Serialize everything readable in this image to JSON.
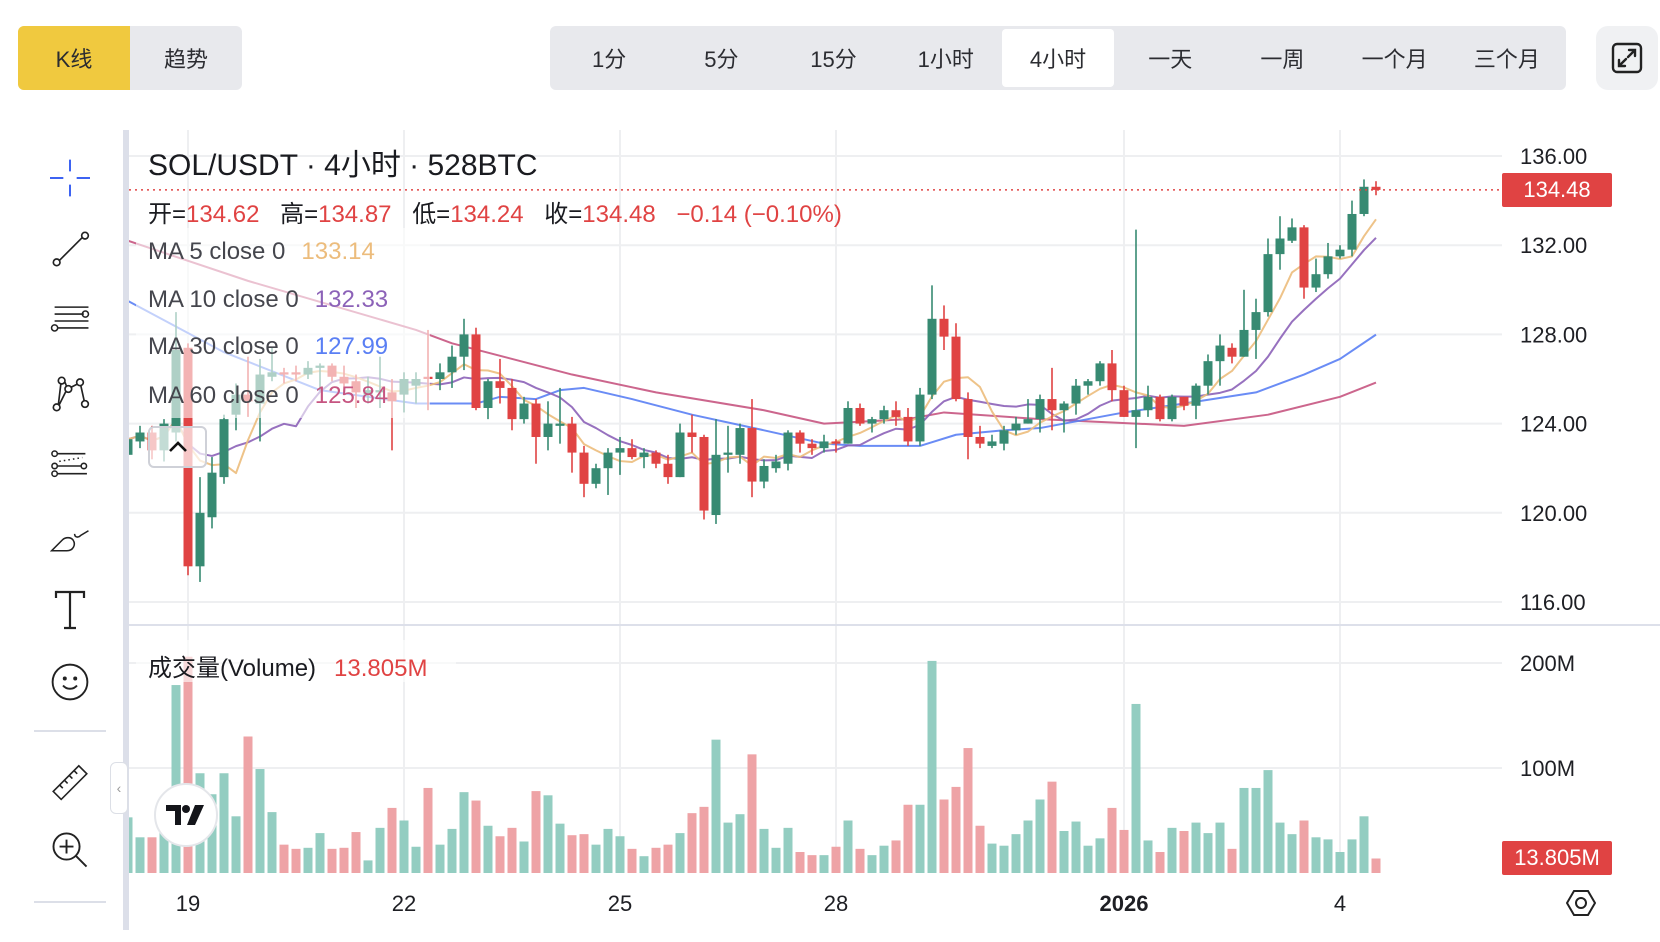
{
  "toolbar": {
    "chart_types": [
      {
        "label": "K线",
        "active": true
      },
      {
        "label": "趋势",
        "active": false
      }
    ],
    "timeframes": [
      {
        "label": "1分",
        "active": false
      },
      {
        "label": "5分",
        "active": false
      },
      {
        "label": "15分",
        "active": false
      },
      {
        "label": "1小时",
        "active": false
      },
      {
        "label": "4小时",
        "active": true
      },
      {
        "label": "一天",
        "active": false
      },
      {
        "label": "一周",
        "active": false
      },
      {
        "label": "一个月",
        "active": false
      },
      {
        "label": "三个月",
        "active": false
      }
    ],
    "fullscreen_icon": "expand-icon"
  },
  "drawing_tools": [
    "crosshair-icon",
    "trend-line-icon",
    "horizontal-lines-icon",
    "pattern-icon",
    "fib-channel-icon",
    "brush-icon",
    "text-icon",
    "emoji-icon",
    "ruler-icon",
    "zoom-in-icon"
  ],
  "legend": {
    "title": "SOL/USDT · 4小时 · 528BTC",
    "open_label": "开=",
    "open": "134.62",
    "high_label": "高=",
    "high": "134.87",
    "low_label": "低=",
    "low": "134.24",
    "close_label": "收=",
    "close": "134.48",
    "change": "−0.14 (−0.10%)",
    "ma": [
      {
        "label": "MA 5 close 0",
        "value": "133.14",
        "color": "#ecbc7c"
      },
      {
        "label": "MA 10 close 0",
        "value": "132.33",
        "color": "#8c62b8"
      },
      {
        "label": "MA 30 close 0",
        "value": "127.99",
        "color": "#5a7ff4"
      },
      {
        "label": "MA 60 close 0",
        "value": "125.84",
        "color": "#c65581"
      }
    ],
    "volume_label": "成交量(Volume)",
    "volume_value": "13.805M"
  },
  "price_tag": "134.48",
  "volume_tag": "13.805M",
  "colors": {
    "up": "#378a72",
    "down": "#e04343",
    "vol_up": "#93cdc1",
    "vol_down": "#eea3a6"
  },
  "chart_data": {
    "type": "candlestick",
    "symbol": "SOL/USDT",
    "interval": "4h",
    "y_ticks": [
      "136.00",
      "132.00",
      "128.00",
      "124.00",
      "120.00",
      "116.00"
    ],
    "ylim": [
      116,
      136
    ],
    "volume_ticks": [
      "200M",
      "100M"
    ],
    "volume_unit": "M",
    "x_ticks": [
      {
        "label": "19",
        "index": 5,
        "bold": false
      },
      {
        "label": "22",
        "index": 23,
        "bold": false
      },
      {
        "label": "25",
        "index": 41,
        "bold": false
      },
      {
        "label": "28",
        "index": 59,
        "bold": false
      },
      {
        "label": "2026",
        "index": 83,
        "bold": true
      },
      {
        "label": "4",
        "index": 101,
        "bold": false
      }
    ],
    "last_price": 134.48,
    "ohlc": [
      [
        122.6,
        123.8,
        122.2,
        123.3
      ],
      [
        123.2,
        123.9,
        122.9,
        123.6
      ],
      [
        123.6,
        123.9,
        122.4,
        122.8
      ],
      [
        122.8,
        124.2,
        122.3,
        124.0
      ],
      [
        123.6,
        129.0,
        123.2,
        127.3
      ],
      [
        127.4,
        127.6,
        117.2,
        117.6
      ],
      [
        117.6,
        121.6,
        116.9,
        120.0
      ],
      [
        119.8,
        122.5,
        119.3,
        121.8
      ],
      [
        121.6,
        124.4,
        121.3,
        124.2
      ],
      [
        124.4,
        125.8,
        123.7,
        125.3
      ],
      [
        125.3,
        127.0,
        124.3,
        125.0
      ],
      [
        124.9,
        126.9,
        123.2,
        126.2
      ],
      [
        126.1,
        127.4,
        125.9,
        126.3
      ],
      [
        126.3,
        126.5,
        125.8,
        126.2
      ],
      [
        126.3,
        126.6,
        125.9,
        126.2
      ],
      [
        126.2,
        126.8,
        126.0,
        126.5
      ],
      [
        126.5,
        126.7,
        125.5,
        126.6
      ],
      [
        126.6,
        126.7,
        125.9,
        126.1
      ],
      [
        126.1,
        126.6,
        125.4,
        125.8
      ],
      [
        125.9,
        126.2,
        124.7,
        125.4
      ],
      [
        125.3,
        126.1,
        124.9,
        125.5
      ],
      [
        125.4,
        127.0,
        124.7,
        125.5
      ],
      [
        125.4,
        126.0,
        122.8,
        125.0
      ],
      [
        125.3,
        126.3,
        124.5,
        126.0
      ],
      [
        125.7,
        126.3,
        124.9,
        126.0
      ],
      [
        126.1,
        128.2,
        124.6,
        126.0
      ],
      [
        126.0,
        126.7,
        125.5,
        126.3
      ],
      [
        126.3,
        127.5,
        125.6,
        127.0
      ],
      [
        127.0,
        128.7,
        126.4,
        128.0
      ],
      [
        128.0,
        128.3,
        124.6,
        124.7
      ],
      [
        124.7,
        126.0,
        124.2,
        125.9
      ],
      [
        125.9,
        126.9,
        124.9,
        125.6
      ],
      [
        125.6,
        126.0,
        123.7,
        124.2
      ],
      [
        124.2,
        125.2,
        124.0,
        124.9
      ],
      [
        124.9,
        125.1,
        122.2,
        123.4
      ],
      [
        123.4,
        125.0,
        122.8,
        124.0
      ],
      [
        123.9,
        125.6,
        123.1,
        124.0
      ],
      [
        124.0,
        124.3,
        121.8,
        122.7
      ],
      [
        122.7,
        123.0,
        120.7,
        121.3
      ],
      [
        121.3,
        122.2,
        121.1,
        122.0
      ],
      [
        122.0,
        122.9,
        120.8,
        122.7
      ],
      [
        122.7,
        123.4,
        121.7,
        122.9
      ],
      [
        122.9,
        123.3,
        122.4,
        122.5
      ],
      [
        122.5,
        122.9,
        122.0,
        122.7
      ],
      [
        122.7,
        122.8,
        122.0,
        122.2
      ],
      [
        122.2,
        122.6,
        121.3,
        121.6
      ],
      [
        121.6,
        124.0,
        121.6,
        123.6
      ],
      [
        123.6,
        124.4,
        122.7,
        123.4
      ],
      [
        123.4,
        123.5,
        119.7,
        120.1
      ],
      [
        119.9,
        124.2,
        119.5,
        122.6
      ],
      [
        122.6,
        123.9,
        121.8,
        122.7
      ],
      [
        122.6,
        124.0,
        122.2,
        123.8
      ],
      [
        123.8,
        125.1,
        120.7,
        121.4
      ],
      [
        121.4,
        122.4,
        121.1,
        122.1
      ],
      [
        122.0,
        122.6,
        121.8,
        122.3
      ],
      [
        122.2,
        123.7,
        121.9,
        123.6
      ],
      [
        123.6,
        123.7,
        122.7,
        123.1
      ],
      [
        123.1,
        123.3,
        122.6,
        122.9
      ],
      [
        122.9,
        123.5,
        122.7,
        123.2
      ],
      [
        123.2,
        123.3,
        122.7,
        123.1
      ],
      [
        123.1,
        125.0,
        123.1,
        124.7
      ],
      [
        124.7,
        124.9,
        123.9,
        124.0
      ],
      [
        124.0,
        124.3,
        123.6,
        124.2
      ],
      [
        124.2,
        124.8,
        124.0,
        124.6
      ],
      [
        124.6,
        125.0,
        123.9,
        124.3
      ],
      [
        124.3,
        124.7,
        123.0,
        123.2
      ],
      [
        123.2,
        125.6,
        123.0,
        125.3
      ],
      [
        125.3,
        130.2,
        125.1,
        128.7
      ],
      [
        128.7,
        129.3,
        127.3,
        127.9
      ],
      [
        127.9,
        128.5,
        125.0,
        125.1
      ],
      [
        125.1,
        125.4,
        122.4,
        123.4
      ],
      [
        123.4,
        123.9,
        122.9,
        123.1
      ],
      [
        123.0,
        123.5,
        122.9,
        123.2
      ],
      [
        123.1,
        123.9,
        122.8,
        123.7
      ],
      [
        123.7,
        124.3,
        123.5,
        124.0
      ],
      [
        124.0,
        125.1,
        124.0,
        124.2
      ],
      [
        124.2,
        125.3,
        123.6,
        125.1
      ],
      [
        125.1,
        126.5,
        123.7,
        124.6
      ],
      [
        124.6,
        125.0,
        123.6,
        124.9
      ],
      [
        124.9,
        126.0,
        124.4,
        125.7
      ],
      [
        125.7,
        126.0,
        125.3,
        125.9
      ],
      [
        125.9,
        126.8,
        125.7,
        126.7
      ],
      [
        126.7,
        127.3,
        125.0,
        125.5
      ],
      [
        125.5,
        125.7,
        124.3,
        124.3
      ],
      [
        124.3,
        132.7,
        122.9,
        124.6
      ],
      [
        124.6,
        125.7,
        124.3,
        125.2
      ],
      [
        125.2,
        125.3,
        124.1,
        124.2
      ],
      [
        124.2,
        125.3,
        124.1,
        125.2
      ],
      [
        125.2,
        125.2,
        124.6,
        124.8
      ],
      [
        124.8,
        125.8,
        124.2,
        125.7
      ],
      [
        125.7,
        127.1,
        125.3,
        126.8
      ],
      [
        126.8,
        128.0,
        125.7,
        127.5
      ],
      [
        127.4,
        127.6,
        126.7,
        127.0
      ],
      [
        127.0,
        130.0,
        127.0,
        128.2
      ],
      [
        128.2,
        129.6,
        126.9,
        129.0
      ],
      [
        129.0,
        132.3,
        128.8,
        131.6
      ],
      [
        131.6,
        133.3,
        130.9,
        132.3
      ],
      [
        132.2,
        133.2,
        132.1,
        132.8
      ],
      [
        132.8,
        132.9,
        129.6,
        130.1
      ],
      [
        130.1,
        131.4,
        129.9,
        130.7
      ],
      [
        130.7,
        132.1,
        130.5,
        131.5
      ],
      [
        131.5,
        132.0,
        131.4,
        131.8
      ],
      [
        131.8,
        134.0,
        131.5,
        133.4
      ],
      [
        133.4,
        134.95,
        133.3,
        134.62
      ],
      [
        134.62,
        134.87,
        134.24,
        134.48
      ]
    ],
    "volume": [
      53,
      34,
      34,
      40,
      179,
      206,
      95,
      75,
      95,
      54,
      130,
      99,
      58,
      27,
      23,
      24,
      38,
      23,
      24,
      39,
      12,
      43,
      62,
      50,
      25,
      81,
      27,
      42,
      77,
      69,
      45,
      35,
      43,
      30,
      78,
      74,
      47,
      36,
      37,
      27,
      42,
      35,
      23,
      16,
      24,
      27,
      38,
      57,
      63,
      127,
      48,
      56,
      113,
      42,
      24,
      43,
      20,
      17,
      17,
      25,
      50,
      23,
      17,
      26,
      31,
      65,
      65,
      202,
      70,
      82,
      119,
      45,
      28,
      26,
      37,
      50,
      70,
      87,
      40,
      49,
      26,
      33,
      62,
      41,
      161,
      31,
      20,
      43,
      40,
      48,
      38,
      48,
      23,
      81,
      81,
      98,
      48,
      37,
      50,
      34,
      32,
      20,
      32,
      54,
      13.805
    ],
    "ma30_points": [
      [
        0,
        129.5
      ],
      [
        8,
        127.2
      ],
      [
        16,
        125.5
      ],
      [
        24,
        124.9
      ],
      [
        29,
        124.9
      ],
      [
        31,
        125.2
      ],
      [
        34,
        125.1
      ],
      [
        36,
        125.5
      ],
      [
        38,
        125.6
      ],
      [
        42,
        125.1
      ],
      [
        47,
        124.4
      ],
      [
        53,
        123.7
      ],
      [
        58,
        123.1
      ],
      [
        61,
        123.0
      ],
      [
        66,
        123.0
      ],
      [
        69,
        123.5
      ],
      [
        73,
        123.7
      ],
      [
        76,
        123.8
      ],
      [
        83,
        124.5
      ],
      [
        88,
        124.9
      ],
      [
        94,
        125.4
      ],
      [
        98,
        126.2
      ],
      [
        101,
        126.9
      ],
      [
        104,
        127.99
      ]
    ],
    "ma60_points": [
      [
        0,
        132.2
      ],
      [
        10,
        130.4
      ],
      [
        24,
        128.2
      ],
      [
        27,
        127.6
      ],
      [
        37,
        126.2
      ],
      [
        44,
        125.4
      ],
      [
        53,
        124.6
      ],
      [
        58,
        124.0
      ],
      [
        65,
        124.2
      ],
      [
        68,
        124.5
      ],
      [
        76,
        124.2
      ],
      [
        88,
        123.9
      ],
      [
        95,
        124.4
      ],
      [
        101,
        125.2
      ],
      [
        104,
        125.84
      ]
    ]
  }
}
